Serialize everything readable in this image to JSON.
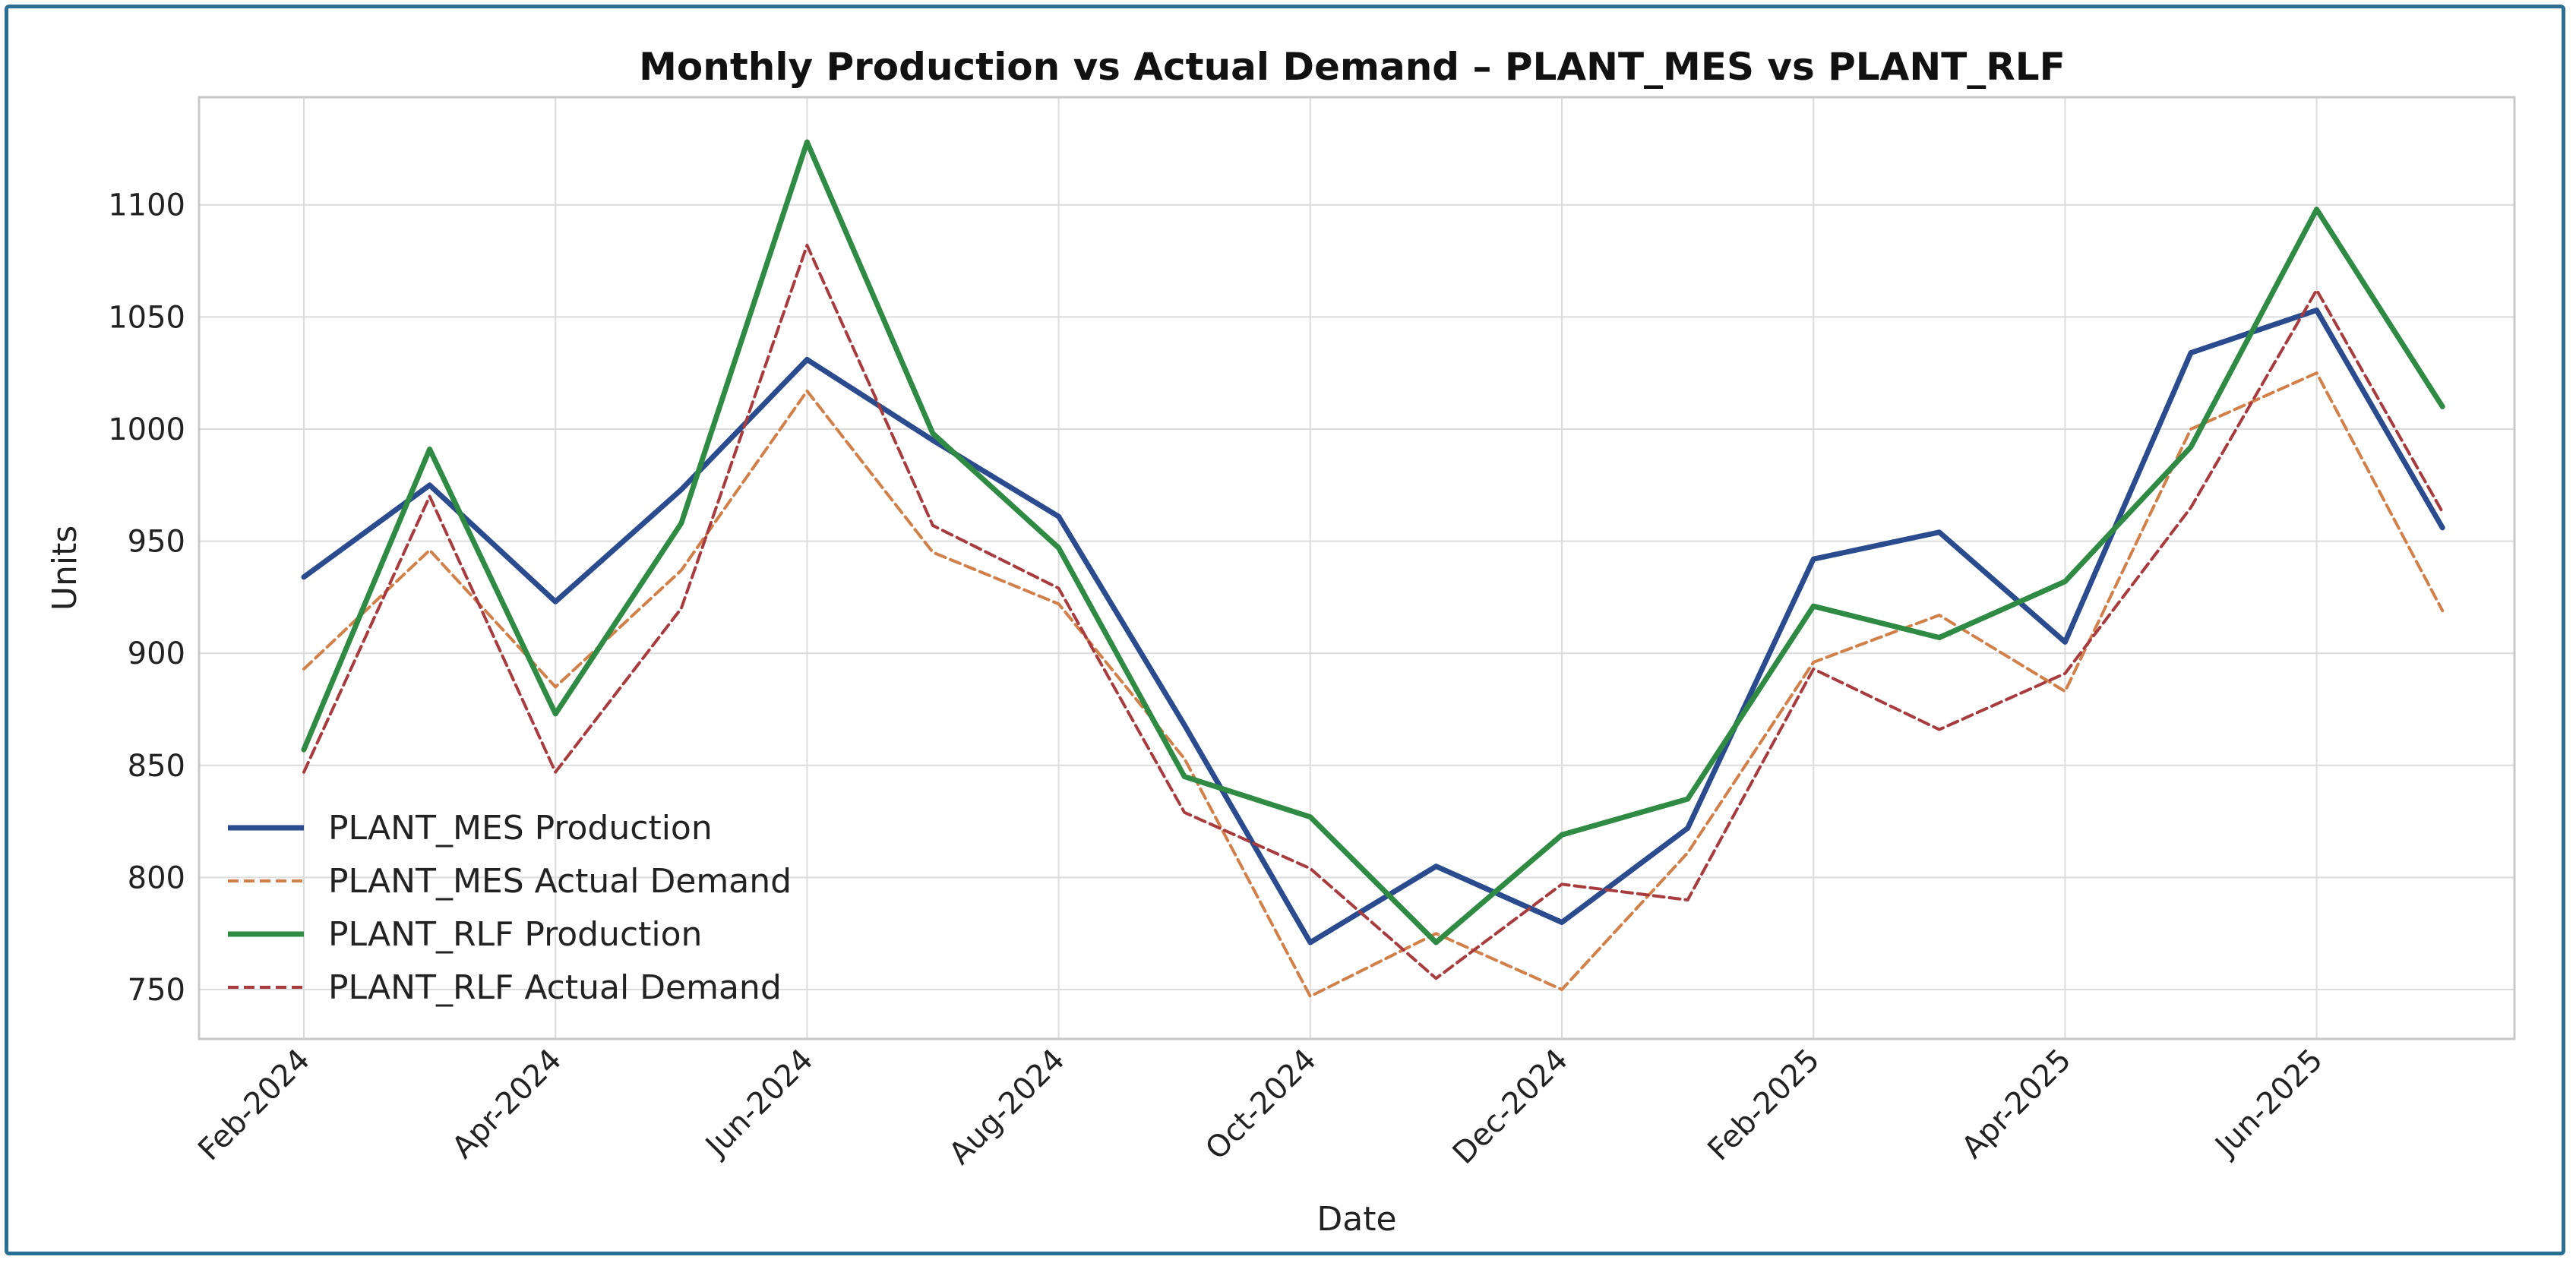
{
  "chart_data": {
    "type": "line",
    "title": "Monthly Production vs Actual Demand – PLANT_MES vs PLANT_RLF",
    "xlabel": "Date",
    "ylabel": "Units",
    "ylim": [
      728,
      1148
    ],
    "yticks": [
      750,
      800,
      850,
      900,
      950,
      1000,
      1050,
      1100
    ],
    "x": [
      "Feb-2024",
      "Mar-2024",
      "Apr-2024",
      "May-2024",
      "Jun-2024",
      "Jul-2024",
      "Aug-2024",
      "Sep-2024",
      "Oct-2024",
      "Nov-2024",
      "Dec-2024",
      "Jan-2025",
      "Feb-2025",
      "Mar-2025",
      "Apr-2025",
      "May-2025",
      "Jun-2025",
      "Jul-2025"
    ],
    "xticks": [
      "Feb-2024",
      "Apr-2024",
      "Jun-2024",
      "Aug-2024",
      "Oct-2024",
      "Dec-2024",
      "Feb-2025",
      "Apr-2025",
      "Jun-2025"
    ],
    "grid": true,
    "legend_position": "lower-left",
    "series": [
      {
        "name": "PLANT_MES Production",
        "color": "#2a4b8d",
        "style": "solid",
        "values": [
          934,
          975,
          923,
          973,
          1031,
          995,
          961,
          868,
          771,
          805,
          780,
          822,
          942,
          954,
          905,
          1034,
          1053,
          956
        ]
      },
      {
        "name": "PLANT_MES Actual Demand",
        "color": "#d2804a",
        "style": "dashed",
        "values": [
          893,
          946,
          885,
          937,
          1017,
          945,
          922,
          853,
          747,
          775,
          750,
          811,
          896,
          917,
          883,
          1000,
          1025,
          919
        ]
      },
      {
        "name": "PLANT_RLF Production",
        "color": "#2f8a43",
        "style": "solid",
        "values": [
          857,
          991,
          873,
          958,
          1128,
          998,
          947,
          845,
          827,
          771,
          819,
          835,
          921,
          907,
          932,
          992,
          1098,
          1010
        ]
      },
      {
        "name": "PLANT_RLF Actual Demand",
        "color": "#a83b3d",
        "style": "dashed",
        "values": [
          847,
          970,
          847,
          920,
          1082,
          957,
          929,
          829,
          804,
          755,
          797,
          790,
          893,
          866,
          891,
          965,
          1062,
          963
        ]
      }
    ]
  }
}
